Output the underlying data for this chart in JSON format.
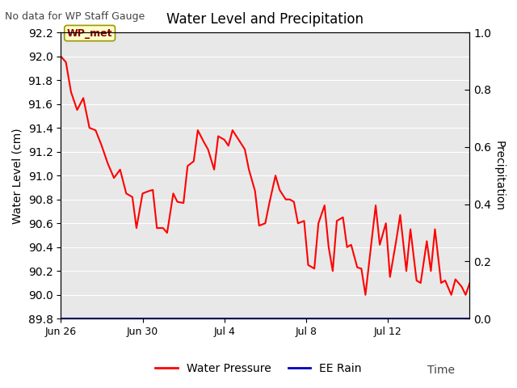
{
  "title": "Water Level and Precipitation",
  "top_left_text": "No data for WP Staff Gauge",
  "xlabel": "Time",
  "ylabel_left": "Water Level (cm)",
  "ylabel_right": "Precipitation",
  "ylim_left": [
    89.8,
    92.2
  ],
  "ylim_right": [
    0.0,
    1.0
  ],
  "yticks_left": [
    89.8,
    90.0,
    90.2,
    90.4,
    90.6,
    90.8,
    91.0,
    91.2,
    91.4,
    91.6,
    91.8,
    92.0,
    92.2
  ],
  "yticks_right": [
    0.0,
    0.2,
    0.4,
    0.6,
    0.8,
    1.0
  ],
  "bg_color": "#e8e8e8",
  "fig_color": "#ffffff",
  "line_color_wp": "#ff0000",
  "line_color_rain": "#0000bb",
  "legend_label_wp": "Water Pressure",
  "legend_label_rain": "EE Rain",
  "annotation_label": "WP_met",
  "xlim": [
    0,
    20
  ],
  "xtick_positions": [
    0,
    4,
    8,
    12,
    16
  ],
  "xtick_labels": [
    "Jun 26",
    "Jun 30",
    "Jul 4",
    "Jul 8",
    "Jul 12"
  ],
  "water_pressure_x": [
    0.0,
    0.25,
    0.5,
    0.8,
    1.1,
    1.4,
    1.7,
    2.0,
    2.3,
    2.6,
    2.9,
    3.2,
    3.5,
    3.7,
    4.0,
    4.3,
    4.5,
    4.7,
    5.0,
    5.2,
    5.5,
    5.7,
    6.0,
    6.2,
    6.5,
    6.7,
    7.0,
    7.2,
    7.5,
    7.7,
    8.0,
    8.2,
    8.4,
    8.7,
    9.0,
    9.2,
    9.5,
    9.7,
    10.0,
    10.2,
    10.5,
    10.7,
    11.0,
    11.2,
    11.4,
    11.6,
    11.9,
    12.1,
    12.4,
    12.6,
    12.9,
    13.1,
    13.3,
    13.5,
    13.8,
    14.0,
    14.2,
    14.5,
    14.7,
    14.9,
    15.2,
    15.4,
    15.6,
    15.9,
    16.1,
    16.4,
    16.6,
    16.9,
    17.1,
    17.4,
    17.6,
    17.9,
    18.1,
    18.3,
    18.6,
    18.8,
    19.1,
    19.3,
    19.6,
    19.8,
    20.0
  ],
  "water_pressure_y": [
    92.0,
    91.95,
    91.7,
    91.55,
    91.65,
    91.4,
    91.38,
    91.25,
    91.1,
    90.98,
    91.05,
    90.85,
    90.82,
    90.56,
    90.85,
    90.87,
    90.88,
    90.56,
    90.56,
    90.52,
    90.85,
    90.78,
    90.77,
    91.08,
    91.12,
    91.38,
    91.28,
    91.22,
    91.05,
    91.33,
    91.3,
    91.25,
    91.38,
    91.3,
    91.22,
    91.05,
    90.87,
    90.58,
    90.6,
    90.77,
    91.0,
    90.88,
    90.8,
    90.8,
    90.78,
    90.6,
    90.62,
    90.25,
    90.22,
    90.6,
    90.75,
    90.4,
    90.2,
    90.62,
    90.65,
    90.4,
    90.42,
    90.23,
    90.22,
    90.0,
    90.45,
    90.75,
    90.42,
    90.6,
    90.15,
    90.45,
    90.67,
    90.2,
    90.55,
    90.12,
    90.1,
    90.45,
    90.2,
    90.55,
    90.1,
    90.12,
    90.0,
    90.13,
    90.07,
    90.0,
    90.1
  ]
}
